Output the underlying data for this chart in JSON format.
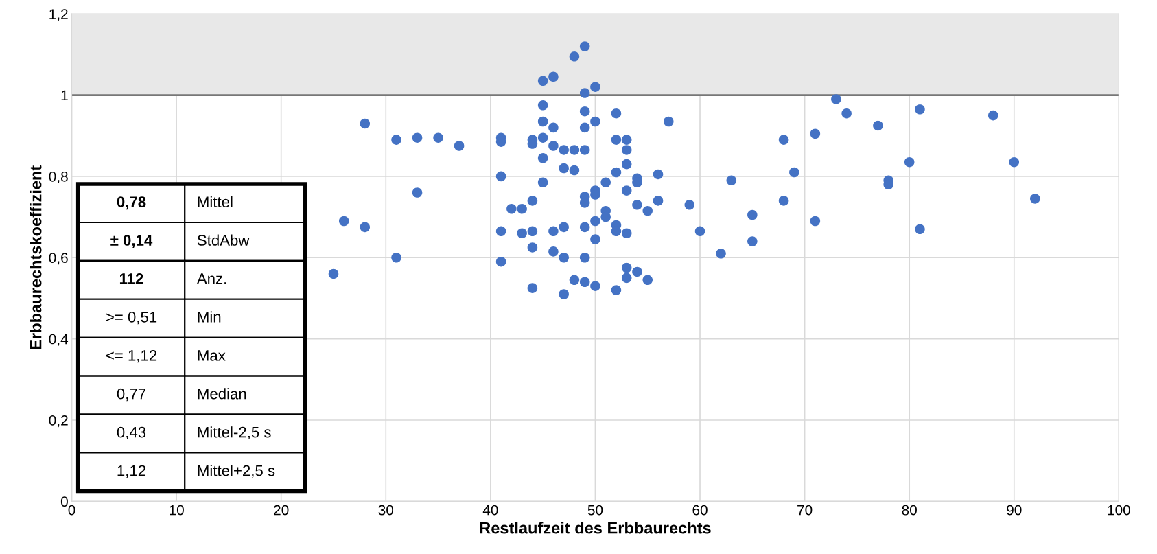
{
  "chart_data": {
    "type": "scatter",
    "xlabel": "Restlaufzeit des Erbbaurechts",
    "ylabel": "Erbbaurechtskoeffizient",
    "xlim": [
      0,
      100
    ],
    "xticks": [
      0,
      10,
      20,
      30,
      40,
      50,
      60,
      70,
      80,
      90,
      100
    ],
    "ylim": [
      0,
      1.2
    ],
    "yticks": [
      {
        "value": 0,
        "label": "0"
      },
      {
        "value": 0.2,
        "label": "0,2"
      },
      {
        "value": 0.4,
        "label": "0,4"
      },
      {
        "value": 0.6,
        "label": "0,6"
      },
      {
        "value": 0.8,
        "label": "0,8"
      },
      {
        "value": 1,
        "label": "1"
      },
      {
        "value": 1.2,
        "label": "1,2"
      }
    ],
    "grid": true,
    "marker": "circle",
    "ref_lines": [
      {
        "axis": "y",
        "value": 1,
        "label": null,
        "color": "#777777"
      }
    ],
    "bands": [
      {
        "axis": "y",
        "from": 1,
        "to": 1.2,
        "label": null,
        "color": "#e8e8e8"
      }
    ],
    "annotations": [
      "0,78",
      "Mittel",
      "± 0,14",
      "StdAbw",
      "112",
      "Anz.",
      ">= 0,51",
      "Min",
      "<= 1,12",
      "Max",
      "0,77",
      "Median",
      "0,43",
      "Mittel-2,5 s",
      "1,12",
      "Mittel+2,5 s"
    ],
    "series": [
      {
        "color": "#4472c4",
        "x": [
          25,
          26,
          28,
          28,
          31,
          31,
          33,
          33,
          35,
          37,
          41,
          41,
          41,
          41,
          41,
          42,
          43,
          43,
          44,
          44,
          44,
          44,
          44,
          44,
          45,
          45,
          45,
          45,
          45,
          45,
          46,
          46,
          46,
          46,
          46,
          47,
          47,
          47,
          47,
          47,
          48,
          48,
          48,
          48,
          49,
          49,
          49,
          49,
          49,
          49,
          49,
          49,
          49,
          49,
          50,
          50,
          50,
          50,
          50,
          50,
          50,
          51,
          51,
          51,
          52,
          52,
          52,
          52,
          52,
          52,
          53,
          53,
          53,
          53,
          53,
          53,
          53,
          54,
          54,
          54,
          54,
          55,
          55,
          56,
          56,
          57,
          59,
          60,
          62,
          63,
          65,
          65,
          68,
          68,
          69,
          71,
          71,
          73,
          74,
          77,
          78,
          78,
          80,
          81,
          81,
          88,
          90,
          92
        ],
        "values": [
          0.56,
          0.69,
          0.675,
          0.93,
          0.89,
          0.6,
          0.895,
          0.76,
          0.895,
          0.875,
          0.895,
          0.885,
          0.8,
          0.665,
          0.59,
          0.72,
          0.72,
          0.66,
          0.89,
          0.88,
          0.74,
          0.665,
          0.625,
          0.525,
          1.035,
          0.975,
          0.935,
          0.895,
          0.845,
          0.785,
          1.045,
          0.92,
          0.875,
          0.665,
          0.615,
          0.865,
          0.82,
          0.675,
          0.6,
          0.51,
          1.095,
          0.865,
          0.815,
          0.545,
          1.12,
          1.005,
          0.96,
          0.92,
          0.865,
          0.75,
          0.735,
          0.675,
          0.6,
          0.54,
          1.02,
          0.935,
          0.765,
          0.755,
          0.69,
          0.645,
          0.53,
          0.785,
          0.715,
          0.7,
          0.955,
          0.89,
          0.81,
          0.68,
          0.665,
          0.52,
          0.89,
          0.865,
          0.83,
          0.765,
          0.66,
          0.575,
          0.55,
          0.795,
          0.785,
          0.73,
          0.565,
          0.715,
          0.545,
          0.805,
          0.74,
          0.935,
          0.73,
          0.665,
          0.61,
          0.79,
          0.705,
          0.64,
          0.89,
          0.74,
          0.81,
          0.905,
          0.69,
          0.99,
          0.955,
          0.925,
          0.79,
          0.78,
          0.835,
          0.965,
          0.67,
          0.95,
          0.835,
          0.745
        ]
      }
    ]
  }
}
